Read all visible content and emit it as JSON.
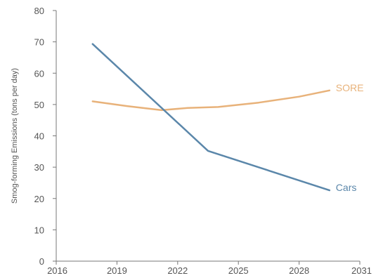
{
  "chart_data": {
    "type": "line",
    "title": "",
    "xlabel": "",
    "ylabel": "Smog-forming Emissions (tons per day)",
    "xlim": [
      2016,
      2031
    ],
    "ylim": [
      0,
      80
    ],
    "x_ticks": [
      "2016",
      "2019",
      "2022",
      "2025",
      "2028",
      "2031"
    ],
    "y_ticks": [
      "0",
      "10",
      "20",
      "30",
      "40",
      "50",
      "60",
      "70",
      "80"
    ],
    "grid": false,
    "legend": "inline-labels",
    "series": [
      {
        "name": "SORE",
        "color": "#E8B27A",
        "points": [
          [
            2017.8,
            51
          ],
          [
            2019.5,
            49.5
          ],
          [
            2021.2,
            48.2
          ],
          [
            2022.5,
            48.9
          ],
          [
            2024.0,
            49.2
          ],
          [
            2026.0,
            50.6
          ],
          [
            2028.0,
            52.5
          ],
          [
            2029.5,
            54.5
          ]
        ]
      },
      {
        "name": "Cars",
        "color": "#5B87AA",
        "points": [
          [
            2017.8,
            69.3
          ],
          [
            2023.5,
            35.2
          ],
          [
            2029.5,
            22.6
          ]
        ]
      }
    ]
  }
}
